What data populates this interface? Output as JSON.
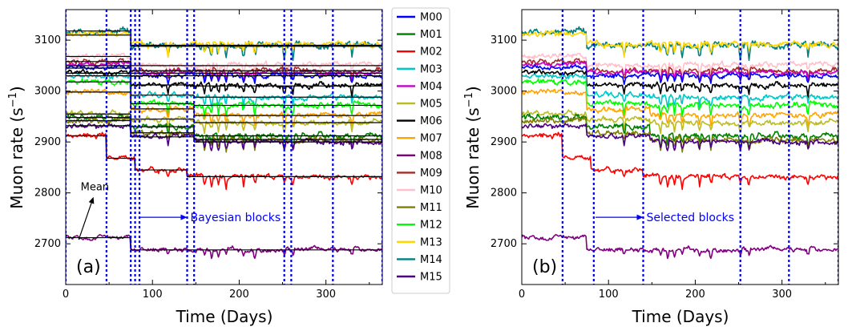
{
  "chart_data": [
    {
      "panel": "a",
      "type": "line",
      "panel_label": "(a)",
      "xlabel": "Time (Days)",
      "ylabel_prefix": "Muon rate (s",
      "ylabel_sup": "−1",
      "ylabel_suffix": ")",
      "xlim": [
        0,
        365
      ],
      "ylim": [
        2620,
        3160
      ],
      "xticks": [
        0,
        100,
        200,
        300
      ],
      "yticks": [
        2700,
        2800,
        2900,
        3000,
        3100
      ],
      "block_boundaries": [
        0,
        47,
        75,
        80,
        85,
        140,
        148,
        252,
        260,
        308,
        365
      ],
      "annotations": [
        {
          "id": "bayesian",
          "text": "Bayesian blocks",
          "arrow_from": [
            85,
            2752
          ],
          "arrow_to": [
            140,
            2752
          ]
        },
        {
          "id": "mean",
          "text": "Mean",
          "arrow_from": [
            15,
            2708
          ],
          "arrow_to": [
            32,
            2792
          ]
        }
      ],
      "mean_levels": [
        {
          "series": "M14",
          "segments": [
            [
              0,
              75,
              3118
            ],
            [
              75,
              365,
              3088
            ]
          ]
        },
        {
          "series": "M13",
          "segments": [
            [
              0,
              75,
              3110
            ],
            [
              75,
              365,
              3090
            ]
          ]
        },
        {
          "series": "M10",
          "segments": [
            [
              0,
              75,
              3068
            ],
            [
              75,
              365,
              3050
            ]
          ]
        },
        {
          "series": "M09",
          "segments": [
            [
              0,
              75,
              3058
            ],
            [
              75,
              365,
              3040
            ]
          ]
        },
        {
          "series": "M04",
          "segments": [
            [
              0,
              75,
              3050
            ],
            [
              75,
              365,
              3035
            ]
          ]
        },
        {
          "series": "M00",
          "segments": [
            [
              0,
              75,
              3045
            ],
            [
              75,
              365,
              3030
            ]
          ]
        },
        {
          "series": "M06",
          "segments": [
            [
              0,
              75,
              3035
            ],
            [
              75,
              148,
              3012
            ],
            [
              148,
              365,
              3010
            ]
          ]
        },
        {
          "series": "M03",
          "segments": [
            [
              0,
              75,
              3030
            ],
            [
              75,
              148,
              2992
            ],
            [
              148,
              365,
              2988
            ]
          ]
        },
        {
          "series": "M12",
          "segments": [
            [
              0,
              75,
              3018
            ],
            [
              75,
              148,
              2975
            ],
            [
              148,
              365,
              2972
            ]
          ]
        },
        {
          "series": "M07",
          "segments": [
            [
              0,
              75,
              2998
            ],
            [
              75,
              148,
              2965
            ],
            [
              148,
              365,
              2952
            ]
          ]
        },
        {
          "series": "M05",
          "segments": [
            [
              0,
              75,
              2955
            ],
            [
              75,
              148,
              2945
            ],
            [
              148,
              365,
              2938
            ]
          ]
        },
        {
          "series": "M01",
          "segments": [
            [
              0,
              75,
              2948
            ],
            [
              75,
              148,
              2930
            ],
            [
              148,
              365,
              2912
            ]
          ]
        },
        {
          "series": "M11",
          "segments": [
            [
              0,
              75,
              2942
            ],
            [
              75,
              148,
              2918
            ],
            [
              148,
              365,
              2905
            ]
          ]
        },
        {
          "series": "M15",
          "segments": [
            [
              0,
              75,
              2932
            ],
            [
              75,
              148,
              2910
            ],
            [
              148,
              365,
              2900
            ]
          ]
        },
        {
          "series": "M02",
          "segments": [
            [
              0,
              47,
              2912
            ],
            [
              47,
              80,
              2868
            ],
            [
              80,
              140,
              2845
            ],
            [
              140,
              365,
              2832
            ]
          ]
        },
        {
          "series": "M08",
          "segments": [
            [
              0,
              75,
              2712
            ],
            [
              75,
              365,
              2688
            ]
          ]
        }
      ]
    },
    {
      "panel": "b",
      "type": "line",
      "panel_label": "(b)",
      "xlabel": "Time (Days)",
      "ylabel_prefix": "Muon rate (s",
      "ylabel_sup": "−1",
      "ylabel_suffix": ")",
      "xlim": [
        0,
        365
      ],
      "ylim": [
        2620,
        3160
      ],
      "xticks": [
        0,
        100,
        200,
        300
      ],
      "yticks": [
        2700,
        2800,
        2900,
        3000,
        3100
      ],
      "block_boundaries": [
        47,
        83,
        140,
        252,
        308,
        365
      ],
      "annotations": [
        {
          "id": "selected",
          "text": "Selected blocks",
          "arrow_from": [
            85,
            2752
          ],
          "arrow_to": [
            140,
            2752
          ]
        }
      ]
    }
  ],
  "legend": {
    "entries": [
      {
        "name": "M00",
        "color": "#0000ff"
      },
      {
        "name": "M01",
        "color": "#008000"
      },
      {
        "name": "M02",
        "color": "#ff0000"
      },
      {
        "name": "M03",
        "color": "#00c8c8"
      },
      {
        "name": "M04",
        "color": "#c800c8"
      },
      {
        "name": "M05",
        "color": "#bcbd22"
      },
      {
        "name": "M06",
        "color": "#000000"
      },
      {
        "name": "M07",
        "color": "#ffa500"
      },
      {
        "name": "M08",
        "color": "#800080"
      },
      {
        "name": "M09",
        "color": "#a52a2a"
      },
      {
        "name": "M10",
        "color": "#ffc0cb"
      },
      {
        "name": "M11",
        "color": "#808000"
      },
      {
        "name": "M12",
        "color": "#00ff00"
      },
      {
        "name": "M13",
        "color": "#ffd700"
      },
      {
        "name": "M14",
        "color": "#008080"
      },
      {
        "name": "M15",
        "color": "#4b0082"
      }
    ]
  },
  "series_profiles": [
    {
      "name": "M14",
      "levels": [
        [
          0,
          3118
        ],
        [
          75,
          3090
        ]
      ],
      "noise": 9,
      "seed": 14
    },
    {
      "name": "M13",
      "levels": [
        [
          0,
          3112
        ],
        [
          75,
          3092
        ]
      ],
      "noise": 8,
      "seed": 13
    },
    {
      "name": "M10",
      "levels": [
        [
          0,
          3070
        ],
        [
          75,
          3052
        ]
      ],
      "noise": 7,
      "seed": 10
    },
    {
      "name": "M09",
      "levels": [
        [
          0,
          3058
        ],
        [
          75,
          3040
        ]
      ],
      "noise": 7,
      "seed": 9
    },
    {
      "name": "M04",
      "levels": [
        [
          0,
          3052
        ],
        [
          75,
          3036
        ]
      ],
      "noise": 6,
      "seed": 4
    },
    {
      "name": "M00",
      "levels": [
        [
          0,
          3046
        ],
        [
          75,
          3030
        ]
      ],
      "noise": 6,
      "seed": 0
    },
    {
      "name": "M06",
      "levels": [
        [
          0,
          3036
        ],
        [
          75,
          3012
        ]
      ],
      "noise": 7,
      "seed": 6
    },
    {
      "name": "M03",
      "levels": [
        [
          0,
          3030
        ],
        [
          75,
          2992
        ],
        [
          148,
          2988
        ]
      ],
      "noise": 7,
      "seed": 3
    },
    {
      "name": "M12",
      "levels": [
        [
          0,
          3018
        ],
        [
          75,
          2976
        ],
        [
          148,
          2972
        ]
      ],
      "noise": 8,
      "seed": 12
    },
    {
      "name": "M07",
      "levels": [
        [
          0,
          2998
        ],
        [
          75,
          2965
        ],
        [
          148,
          2952
        ]
      ],
      "noise": 7,
      "seed": 7
    },
    {
      "name": "M05",
      "levels": [
        [
          0,
          2956
        ],
        [
          75,
          2945
        ],
        [
          148,
          2938
        ]
      ],
      "noise": 7,
      "seed": 5
    },
    {
      "name": "M01",
      "levels": [
        [
          0,
          2948
        ],
        [
          75,
          2930
        ],
        [
          148,
          2912
        ]
      ],
      "noise": 8,
      "seed": 1
    },
    {
      "name": "M11",
      "levels": [
        [
          0,
          2942
        ],
        [
          75,
          2918
        ],
        [
          148,
          2905
        ]
      ],
      "noise": 8,
      "seed": 11
    },
    {
      "name": "M15",
      "levels": [
        [
          0,
          2932
        ],
        [
          75,
          2910
        ],
        [
          148,
          2900
        ]
      ],
      "noise": 7,
      "seed": 15
    },
    {
      "name": "M02",
      "levels": [
        [
          0,
          2912
        ],
        [
          47,
          2868
        ],
        [
          80,
          2845
        ],
        [
          140,
          2832
        ]
      ],
      "noise": 7,
      "seed": 2
    },
    {
      "name": "M08",
      "levels": [
        [
          0,
          2712
        ],
        [
          75,
          2688
        ]
      ],
      "noise": 6,
      "seed": 8
    }
  ]
}
